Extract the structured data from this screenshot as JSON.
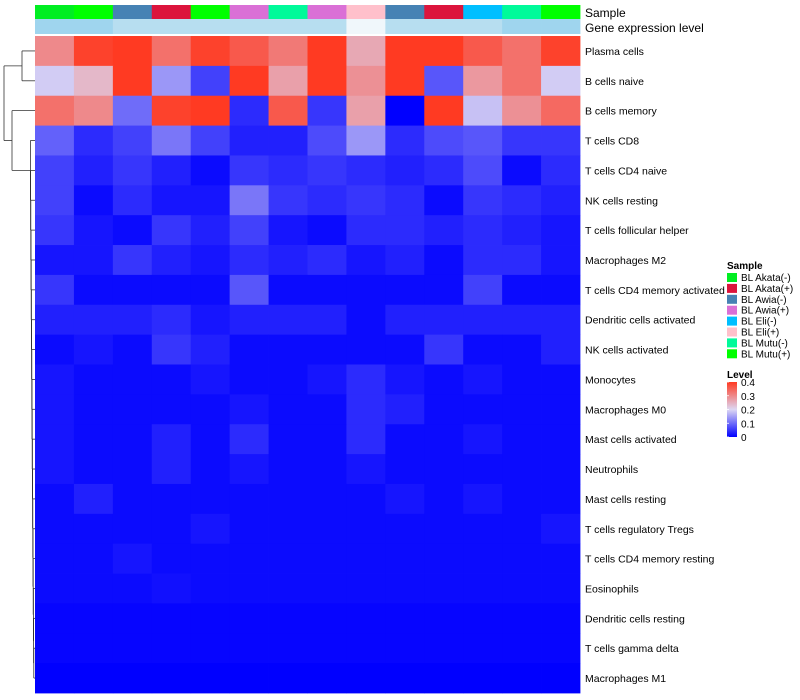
{
  "chart_data": {
    "type": "heatmap",
    "annotation_rows": [
      "Sample",
      "Gene expression level"
    ],
    "row_labels": [
      "Plasma cells",
      "B cells naive",
      "B cells memory",
      "T cells CD8",
      "T cells CD4 naive",
      "NK cells resting",
      "T cells follicular helper",
      "Macrophages M2",
      "T cells CD4 memory activated",
      "Dendritic cells activated",
      "NK cells activated",
      "Monocytes",
      "Macrophages M0",
      "Mast cells activated",
      "Neutrophils",
      "Mast cells resting",
      "T cells regulatory  Tregs",
      "T cells CD4 memory resting",
      "Eosinophils",
      "Dendritic cells resting",
      "T cells gamma delta",
      "Macrophages M1"
    ],
    "column_samples": [
      "BL Akata(-)",
      "BL Mutu(+)",
      "BL Awia(-)",
      "BL Akata(+)",
      "BL Mutu(+)",
      "BL Awia(+)",
      "BL Mutu(-)",
      "BL Awia(+)",
      "BL Eli(+)",
      "BL Awia(-)",
      "BL Akata(+)",
      "BL Eli(-)",
      "BL Mutu(-)",
      "BL Mutu(+)"
    ],
    "gene_expression_level_annotation": [
      0.2,
      0.2,
      0.1,
      0.1,
      0.1,
      0.1,
      0.1,
      0.1,
      0.3,
      0.1,
      0.1,
      0.1,
      0.2,
      0.2
    ],
    "values": [
      [
        0.3,
        0.39,
        0.4,
        0.33,
        0.39,
        0.36,
        0.32,
        0.4,
        0.26,
        0.41,
        0.4,
        0.36,
        0.33,
        0.39
      ],
      [
        0.19,
        0.24,
        0.4,
        0.14,
        0.06,
        0.44,
        0.27,
        0.44,
        0.29,
        0.44,
        0.08,
        0.28,
        0.33,
        0.19
      ],
      [
        0.33,
        0.3,
        0.1,
        0.39,
        0.43,
        0.04,
        0.36,
        0.05,
        0.27,
        0.0,
        0.42,
        0.18,
        0.29,
        0.34
      ],
      [
        0.09,
        0.04,
        0.06,
        0.11,
        0.06,
        0.03,
        0.03,
        0.07,
        0.14,
        0.04,
        0.07,
        0.08,
        0.05,
        0.05
      ],
      [
        0.06,
        0.03,
        0.05,
        0.03,
        0.01,
        0.05,
        0.04,
        0.05,
        0.04,
        0.03,
        0.04,
        0.07,
        0.01,
        0.04
      ],
      [
        0.06,
        0.01,
        0.04,
        0.02,
        0.02,
        0.11,
        0.05,
        0.04,
        0.05,
        0.04,
        0.01,
        0.05,
        0.04,
        0.03
      ],
      [
        0.05,
        0.02,
        0.01,
        0.05,
        0.03,
        0.06,
        0.02,
        0.01,
        0.04,
        0.04,
        0.03,
        0.04,
        0.03,
        0.02
      ],
      [
        0.02,
        0.02,
        0.05,
        0.03,
        0.02,
        0.04,
        0.03,
        0.04,
        0.02,
        0.03,
        0.01,
        0.04,
        0.04,
        0.02
      ],
      [
        0.05,
        0.01,
        0.01,
        0.01,
        0.01,
        0.08,
        0.01,
        0.01,
        0.01,
        0.01,
        0.01,
        0.06,
        0.01,
        0.01
      ],
      [
        0.03,
        0.03,
        0.03,
        0.04,
        0.02,
        0.03,
        0.03,
        0.03,
        0.01,
        0.03,
        0.03,
        0.03,
        0.03,
        0.03
      ],
      [
        0.01,
        0.02,
        0.01,
        0.05,
        0.03,
        0.01,
        0.01,
        0.01,
        0.01,
        0.01,
        0.05,
        0.01,
        0.01,
        0.03
      ],
      [
        0.02,
        0.01,
        0.01,
        0.01,
        0.02,
        0.01,
        0.01,
        0.02,
        0.04,
        0.02,
        0.01,
        0.02,
        0.01,
        0.01
      ],
      [
        0.02,
        0.01,
        0.01,
        0.01,
        0.01,
        0.02,
        0.01,
        0.01,
        0.04,
        0.03,
        0.01,
        0.01,
        0.01,
        0.01
      ],
      [
        0.02,
        0.01,
        0.01,
        0.03,
        0.01,
        0.04,
        0.01,
        0.01,
        0.04,
        0.01,
        0.01,
        0.02,
        0.01,
        0.01
      ],
      [
        0.02,
        0.01,
        0.01,
        0.03,
        0.01,
        0.02,
        0.01,
        0.01,
        0.02,
        0.01,
        0.01,
        0.01,
        0.01,
        0.01
      ],
      [
        0.01,
        0.03,
        0.01,
        0.01,
        0.01,
        0.01,
        0.01,
        0.01,
        0.01,
        0.02,
        0.01,
        0.02,
        0.01,
        0.01
      ],
      [
        0.01,
        0.01,
        0.01,
        0.01,
        0.02,
        0.01,
        0.01,
        0.01,
        0.01,
        0.01,
        0.01,
        0.01,
        0.01,
        0.02
      ],
      [
        0.01,
        0.01,
        0.02,
        0.01,
        0.01,
        0.01,
        0.01,
        0.01,
        0.01,
        0.01,
        0.01,
        0.01,
        0.01,
        0.01
      ],
      [
        0.01,
        0.01,
        0.01,
        0.015,
        0.01,
        0.01,
        0.01,
        0.01,
        0.01,
        0.01,
        0.01,
        0.01,
        0.01,
        0.01
      ],
      [
        0.005,
        0.005,
        0.005,
        0.005,
        0.005,
        0.005,
        0.005,
        0.005,
        0.005,
        0.005,
        0.005,
        0.005,
        0.005,
        0.005
      ],
      [
        0.005,
        0.005,
        0.005,
        0.005,
        0.005,
        0.005,
        0.005,
        0.005,
        0.005,
        0.005,
        0.005,
        0.005,
        0.005,
        0.005
      ],
      [
        0.0,
        0.0,
        0.0,
        0.0,
        0.0,
        0.0,
        0.0,
        0.0,
        0.0,
        0.0,
        0.0,
        0.0,
        0.0,
        0.0
      ]
    ],
    "color_scale": {
      "stops": [
        0,
        0.2,
        0.4
      ],
      "colors": [
        "#0000ff",
        "#ddd7f3",
        "#ff3a22"
      ]
    },
    "legend_sample": {
      "title": "Sample",
      "entries": [
        {
          "label": "BL Akata(-)",
          "color": "#00ee22"
        },
        {
          "label": "BL Akata(+)",
          "color": "#dc143c"
        },
        {
          "label": "BL Awia(-)",
          "color": "#4682b4"
        },
        {
          "label": "BL Awia(+)",
          "color": "#da70d6"
        },
        {
          "label": "BL Eli(-)",
          "color": "#00bfff"
        },
        {
          "label": "BL Eli(+)",
          "color": "#ffc0cb"
        },
        {
          "label": "BL Mutu(-)",
          "color": "#00fa9a"
        },
        {
          "label": "BL Mutu(+)",
          "color": "#00ff00"
        }
      ]
    },
    "legend_level": {
      "title": "Level",
      "ticks": [
        0.4,
        0.3,
        0.2,
        0.1,
        0
      ],
      "tick_labels": [
        "0.4",
        "0.3",
        "0.2",
        "0.1",
        "0"
      ]
    },
    "annotation_gene_colors": {
      "low": "#87ceeb",
      "high": "#d6eef8"
    }
  }
}
